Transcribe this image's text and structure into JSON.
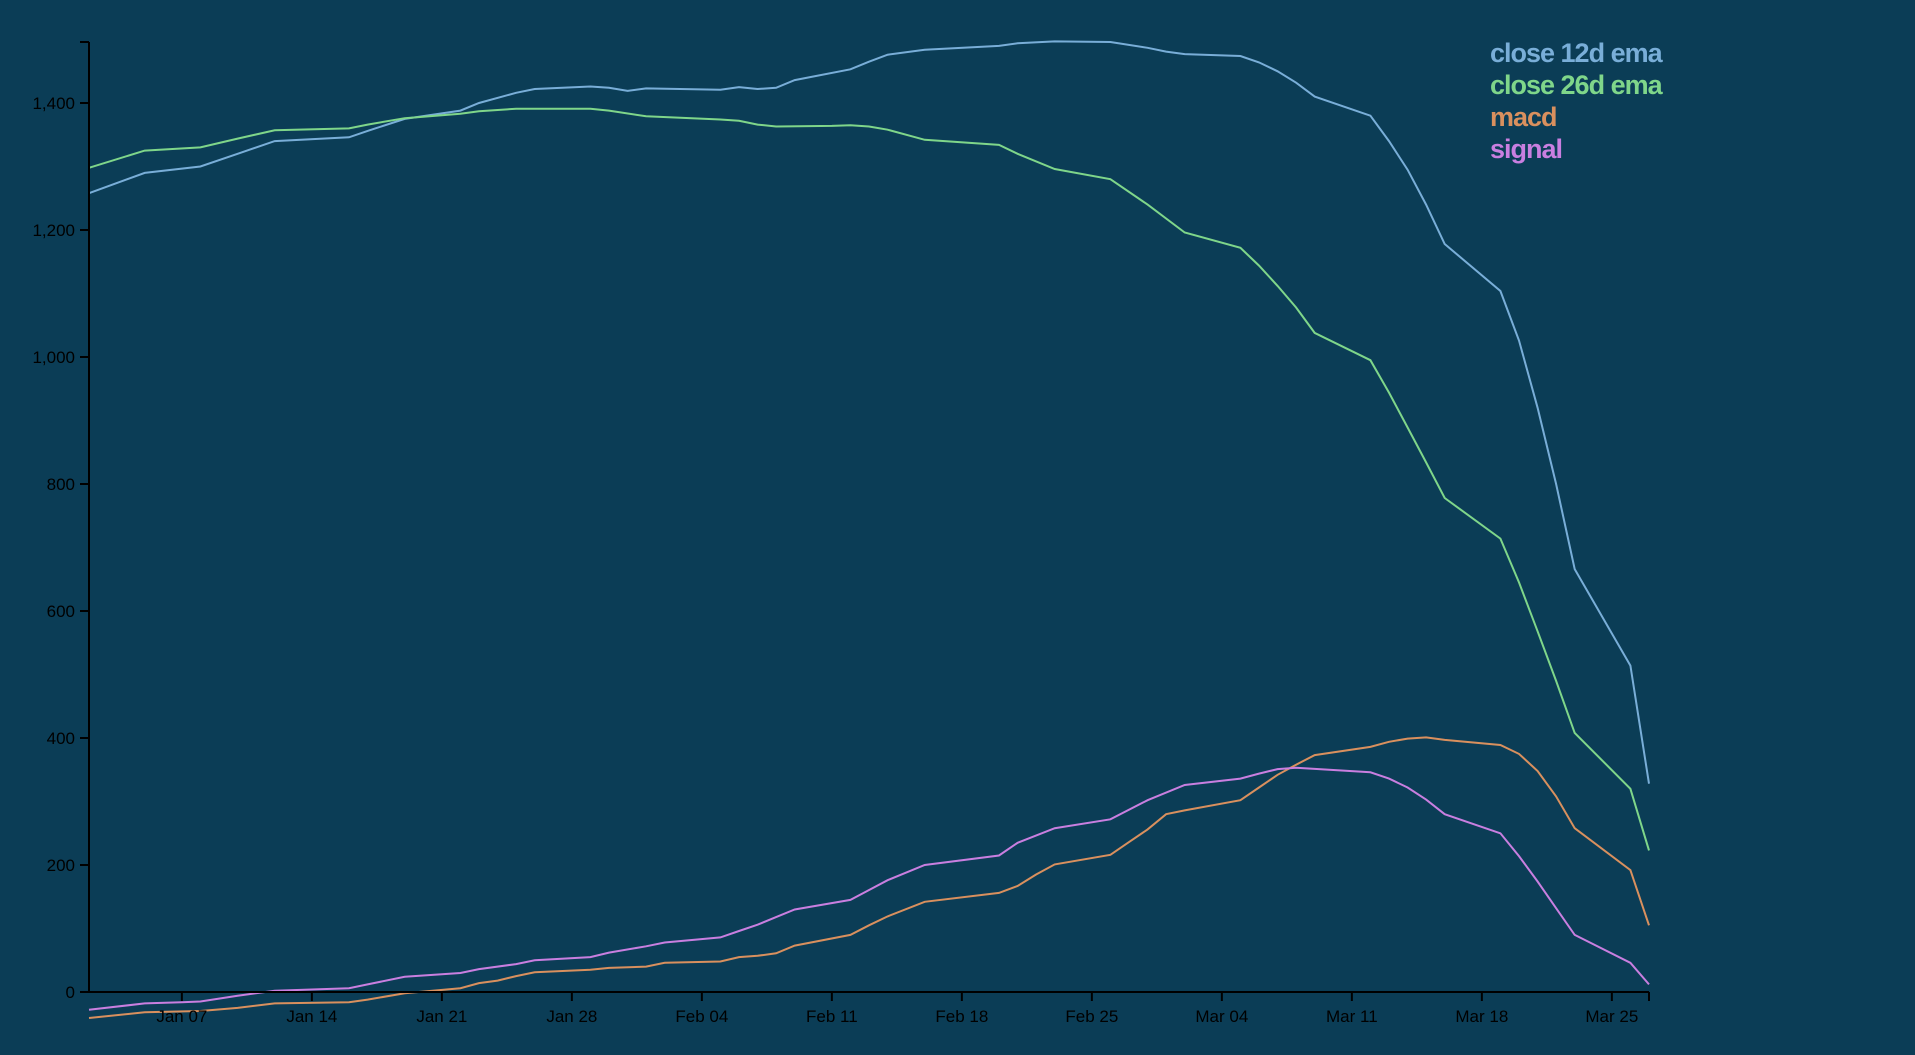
{
  "chart_data": {
    "type": "line",
    "title": "",
    "xlabel": "",
    "ylabel": "",
    "x_axis": {
      "type": "date",
      "range": [
        "2019-01-02",
        "2019-03-27"
      ],
      "ticks": [
        {
          "date": "2019-01-07",
          "label": "Jan 07"
        },
        {
          "date": "2019-01-14",
          "label": "Jan 14"
        },
        {
          "date": "2019-01-21",
          "label": "Jan 21"
        },
        {
          "date": "2019-01-28",
          "label": "Jan 28"
        },
        {
          "date": "2019-02-04",
          "label": "Feb 04"
        },
        {
          "date": "2019-02-11",
          "label": "Feb 11"
        },
        {
          "date": "2019-02-18",
          "label": "Feb 18"
        },
        {
          "date": "2019-02-25",
          "label": "Feb 25"
        },
        {
          "date": "2019-03-04",
          "label": "Mar 04"
        },
        {
          "date": "2019-03-11",
          "label": "Mar 11"
        },
        {
          "date": "2019-03-18",
          "label": "Mar 18"
        },
        {
          "date": "2019-03-25",
          "label": "Mar 25"
        }
      ]
    },
    "y_axis": {
      "range": [
        -30,
        1500
      ],
      "ticks": [
        {
          "value": 0,
          "label": "0"
        },
        {
          "value": 200,
          "label": "200"
        },
        {
          "value": 400,
          "label": "400"
        },
        {
          "value": 600,
          "label": "600"
        },
        {
          "value": 800,
          "label": "800"
        },
        {
          "value": 1000,
          "label": "1,000"
        },
        {
          "value": 1200,
          "label": "1,200"
        },
        {
          "value": 1400,
          "label": "1,400"
        }
      ]
    },
    "grid": false,
    "legend": {
      "position": "top-right"
    },
    "series": [
      {
        "name": "close 12d ema",
        "color": "#79aed8",
        "points": [
          [
            "2019-01-02",
            1258
          ],
          [
            "2019-01-05",
            1290
          ],
          [
            "2019-01-08",
            1300
          ],
          [
            "2019-01-10",
            1320
          ],
          [
            "2019-01-12",
            1340
          ],
          [
            "2019-01-16",
            1346
          ],
          [
            "2019-01-17",
            1356
          ],
          [
            "2019-01-19",
            1375
          ],
          [
            "2019-01-22",
            1388
          ],
          [
            "2019-01-23",
            1400
          ],
          [
            "2019-01-25",
            1416
          ],
          [
            "2019-01-26",
            1422
          ],
          [
            "2019-01-29",
            1426
          ],
          [
            "2019-01-30",
            1424
          ],
          [
            "2019-01-31",
            1419
          ],
          [
            "2019-02-01",
            1423
          ],
          [
            "2019-02-05",
            1421
          ],
          [
            "2019-02-06",
            1425
          ],
          [
            "2019-02-07",
            1422
          ],
          [
            "2019-02-08",
            1424
          ],
          [
            "2019-02-09",
            1436
          ],
          [
            "2019-02-12",
            1453
          ],
          [
            "2019-02-13",
            1465
          ],
          [
            "2019-02-14",
            1476
          ],
          [
            "2019-02-16",
            1484
          ],
          [
            "2019-02-20",
            1490
          ],
          [
            "2019-02-21",
            1494
          ],
          [
            "2019-02-23",
            1497
          ],
          [
            "2019-02-26",
            1496
          ],
          [
            "2019-02-28",
            1487
          ],
          [
            "2019-03-01",
            1481
          ],
          [
            "2019-03-02",
            1477
          ],
          [
            "2019-03-05",
            1474
          ],
          [
            "2019-03-06",
            1464
          ],
          [
            "2019-03-07",
            1450
          ],
          [
            "2019-03-08",
            1432
          ],
          [
            "2019-03-09",
            1410
          ],
          [
            "2019-03-12",
            1380
          ],
          [
            "2019-03-13",
            1340
          ],
          [
            "2019-03-14",
            1295
          ],
          [
            "2019-03-15",
            1240
          ],
          [
            "2019-03-16",
            1178
          ],
          [
            "2019-03-19",
            1104
          ],
          [
            "2019-03-20",
            1026
          ],
          [
            "2019-03-21",
            920
          ],
          [
            "2019-03-22",
            800
          ],
          [
            "2019-03-23",
            666
          ],
          [
            "2019-03-26",
            514
          ],
          [
            "2019-03-27",
            328
          ]
        ]
      },
      {
        "name": "close 26d ema",
        "color": "#7fd68a",
        "points": [
          [
            "2019-01-02",
            1298
          ],
          [
            "2019-01-05",
            1325
          ],
          [
            "2019-01-08",
            1330
          ],
          [
            "2019-01-10",
            1344
          ],
          [
            "2019-01-12",
            1357
          ],
          [
            "2019-01-16",
            1360
          ],
          [
            "2019-01-17",
            1366
          ],
          [
            "2019-01-19",
            1376
          ],
          [
            "2019-01-22",
            1383
          ],
          [
            "2019-01-23",
            1387
          ],
          [
            "2019-01-25",
            1391
          ],
          [
            "2019-01-29",
            1391
          ],
          [
            "2019-01-30",
            1388
          ],
          [
            "2019-02-01",
            1379
          ],
          [
            "2019-02-05",
            1374
          ],
          [
            "2019-02-06",
            1372
          ],
          [
            "2019-02-07",
            1366
          ],
          [
            "2019-02-08",
            1363
          ],
          [
            "2019-02-11",
            1364
          ],
          [
            "2019-02-12",
            1365
          ],
          [
            "2019-02-13",
            1363
          ],
          [
            "2019-02-14",
            1358
          ],
          [
            "2019-02-16",
            1342
          ],
          [
            "2019-02-20",
            1334
          ],
          [
            "2019-02-21",
            1320
          ],
          [
            "2019-02-23",
            1296
          ],
          [
            "2019-02-26",
            1280
          ],
          [
            "2019-02-28",
            1240
          ],
          [
            "2019-03-02",
            1196
          ],
          [
            "2019-03-05",
            1172
          ],
          [
            "2019-03-06",
            1144
          ],
          [
            "2019-03-07",
            1112
          ],
          [
            "2019-03-08",
            1078
          ],
          [
            "2019-03-09",
            1038
          ],
          [
            "2019-03-12",
            995
          ],
          [
            "2019-03-13",
            944
          ],
          [
            "2019-03-14",
            889
          ],
          [
            "2019-03-15",
            834
          ],
          [
            "2019-03-16",
            778
          ],
          [
            "2019-03-19",
            714
          ],
          [
            "2019-03-20",
            645
          ],
          [
            "2019-03-21",
            568
          ],
          [
            "2019-03-22",
            490
          ],
          [
            "2019-03-23",
            408
          ],
          [
            "2019-03-26",
            320
          ],
          [
            "2019-03-27",
            223
          ]
        ]
      },
      {
        "name": "macd",
        "color": "#d9905e",
        "points": [
          [
            "2019-01-02",
            -41
          ],
          [
            "2019-01-05",
            -32
          ],
          [
            "2019-01-08",
            -30
          ],
          [
            "2019-01-10",
            -25
          ],
          [
            "2019-01-12",
            -18
          ],
          [
            "2019-01-16",
            -16
          ],
          [
            "2019-01-17",
            -12
          ],
          [
            "2019-01-19",
            -2
          ],
          [
            "2019-01-22",
            6
          ],
          [
            "2019-01-23",
            14
          ],
          [
            "2019-01-24",
            18
          ],
          [
            "2019-01-25",
            25
          ],
          [
            "2019-01-26",
            31
          ],
          [
            "2019-01-29",
            35
          ],
          [
            "2019-01-30",
            38
          ],
          [
            "2019-02-01",
            40
          ],
          [
            "2019-02-02",
            46
          ],
          [
            "2019-02-05",
            48
          ],
          [
            "2019-02-06",
            55
          ],
          [
            "2019-02-07",
            57
          ],
          [
            "2019-02-08",
            61
          ],
          [
            "2019-02-09",
            73
          ],
          [
            "2019-02-12",
            90
          ],
          [
            "2019-02-13",
            105
          ],
          [
            "2019-02-14",
            119
          ],
          [
            "2019-02-16",
            142
          ],
          [
            "2019-02-20",
            156
          ],
          [
            "2019-02-21",
            167
          ],
          [
            "2019-02-22",
            185
          ],
          [
            "2019-02-23",
            201
          ],
          [
            "2019-02-26",
            216
          ],
          [
            "2019-02-27",
            236
          ],
          [
            "2019-02-28",
            256
          ],
          [
            "2019-03-01",
            280
          ],
          [
            "2019-03-02",
            286
          ],
          [
            "2019-03-05",
            302
          ],
          [
            "2019-03-06",
            322
          ],
          [
            "2019-03-07",
            342
          ],
          [
            "2019-03-08",
            358
          ],
          [
            "2019-03-09",
            373
          ],
          [
            "2019-03-12",
            386
          ],
          [
            "2019-03-13",
            394
          ],
          [
            "2019-03-14",
            399
          ],
          [
            "2019-03-15",
            401
          ],
          [
            "2019-03-16",
            397
          ],
          [
            "2019-03-19",
            389
          ],
          [
            "2019-03-20",
            375
          ],
          [
            "2019-03-21",
            348
          ],
          [
            "2019-03-22",
            308
          ],
          [
            "2019-03-23",
            258
          ],
          [
            "2019-03-26",
            192
          ],
          [
            "2019-03-27",
            105
          ]
        ]
      },
      {
        "name": "signal",
        "color": "#c97fe0",
        "points": [
          [
            "2019-01-02",
            -28
          ],
          [
            "2019-01-05",
            -18
          ],
          [
            "2019-01-07",
            -16
          ],
          [
            "2019-01-08",
            -15
          ],
          [
            "2019-01-10",
            -6
          ],
          [
            "2019-01-12",
            2
          ],
          [
            "2019-01-16",
            6
          ],
          [
            "2019-01-17",
            12
          ],
          [
            "2019-01-19",
            24
          ],
          [
            "2019-01-22",
            30
          ],
          [
            "2019-01-23",
            36
          ],
          [
            "2019-01-25",
            44
          ],
          [
            "2019-01-26",
            50
          ],
          [
            "2019-01-29",
            55
          ],
          [
            "2019-01-30",
            62
          ],
          [
            "2019-02-01",
            72
          ],
          [
            "2019-02-02",
            78
          ],
          [
            "2019-02-05",
            86
          ],
          [
            "2019-02-06",
            96
          ],
          [
            "2019-02-07",
            106
          ],
          [
            "2019-02-08",
            118
          ],
          [
            "2019-02-09",
            130
          ],
          [
            "2019-02-12",
            145
          ],
          [
            "2019-02-14",
            176
          ],
          [
            "2019-02-16",
            200
          ],
          [
            "2019-02-20",
            215
          ],
          [
            "2019-02-21",
            235
          ],
          [
            "2019-02-23",
            258
          ],
          [
            "2019-02-26",
            272
          ],
          [
            "2019-02-28",
            302
          ],
          [
            "2019-03-02",
            326
          ],
          [
            "2019-03-05",
            336
          ],
          [
            "2019-03-06",
            344
          ],
          [
            "2019-03-07",
            351
          ],
          [
            "2019-03-08",
            353
          ],
          [
            "2019-03-12",
            346
          ],
          [
            "2019-03-13",
            336
          ],
          [
            "2019-03-14",
            322
          ],
          [
            "2019-03-15",
            303
          ],
          [
            "2019-03-16",
            280
          ],
          [
            "2019-03-19",
            250
          ],
          [
            "2019-03-20",
            214
          ],
          [
            "2019-03-21",
            174
          ],
          [
            "2019-03-22",
            132
          ],
          [
            "2019-03-23",
            90
          ],
          [
            "2019-03-26",
            46
          ],
          [
            "2019-03-27",
            12
          ]
        ]
      }
    ]
  }
}
